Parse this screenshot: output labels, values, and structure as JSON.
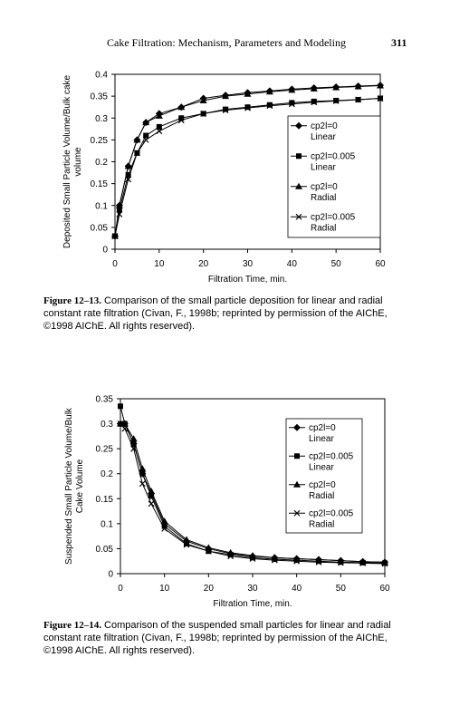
{
  "header": {
    "title": "Cake Filtration: Mechanism, Parameters and Modeling",
    "page": "311"
  },
  "chart_data": [
    {
      "type": "line",
      "x_label": "Filtration Time, min.",
      "y_label": "Deposited Small Particle Volume/Bulk cake\nvolume",
      "caption_label": "Figure 12–13.",
      "caption": "Comparison of the small particle deposition for linear and radial constant rate filtration (Civan, F., 1998b; reprinted by permission of the AIChE, ©1998 AIChE. All rights reserved).",
      "x": [
        0,
        1,
        3,
        5,
        7,
        10,
        15,
        20,
        25,
        30,
        35,
        40,
        45,
        50,
        55,
        60
      ],
      "xlim": [
        0,
        60
      ],
      "xticks": [
        0,
        10,
        20,
        30,
        40,
        50,
        60
      ],
      "ylim": [
        0,
        0.4
      ],
      "yticks": [
        0,
        0.05,
        0.1,
        0.15,
        0.2,
        0.25,
        0.3,
        0.35,
        0.4
      ],
      "series": [
        {
          "name": "cp2l=0\nLinear",
          "color": "#000000",
          "marker": "diamond",
          "values": [
            0.03,
            0.1,
            0.19,
            0.25,
            0.29,
            0.31,
            0.325,
            0.345,
            0.352,
            0.358,
            0.362,
            0.366,
            0.369,
            0.371,
            0.373,
            0.375
          ]
        },
        {
          "name": "cp2l=0.005\nLinear",
          "color": "#000000",
          "marker": "square",
          "values": [
            0.03,
            0.09,
            0.17,
            0.22,
            0.26,
            0.28,
            0.3,
            0.31,
            0.32,
            0.325,
            0.33,
            0.335,
            0.338,
            0.34,
            0.342,
            0.345
          ]
        },
        {
          "name": "cp2l=0\nRadial",
          "color": "#000000",
          "marker": "triangle",
          "values": [
            0.03,
            0.1,
            0.19,
            0.25,
            0.29,
            0.305,
            0.325,
            0.34,
            0.35,
            0.355,
            0.36,
            0.364,
            0.367,
            0.37,
            0.372,
            0.374
          ]
        },
        {
          "name": "cp2l=0.005\nRadial",
          "color": "#000000",
          "marker": "x",
          "values": [
            0.03,
            0.08,
            0.16,
            0.22,
            0.25,
            0.27,
            0.295,
            0.31,
            0.318,
            0.323,
            0.328,
            0.332,
            0.336,
            0.339,
            0.342,
            0.345
          ]
        }
      ]
    },
    {
      "type": "line",
      "x_label": "Filtration Time, min.",
      "y_label": "Suspended Small Particle Volume/Bulk\nCake Volume",
      "caption_label": "Figure 12–14.",
      "caption": "Comparison of the suspended small particles for linear and radial constant rate filtration (Civan, F., 1998b; reprinted by permission of the AIChE, ©1998 AIChE. All rights reserved).",
      "x": [
        0,
        1,
        3,
        5,
        7,
        10,
        15,
        20,
        25,
        30,
        35,
        40,
        45,
        50,
        55,
        60
      ],
      "xlim": [
        0,
        60
      ],
      "xticks": [
        0,
        10,
        20,
        30,
        40,
        50,
        60
      ],
      "ylim": [
        0,
        0.35
      ],
      "yticks": [
        0,
        0.05,
        0.1,
        0.15,
        0.2,
        0.25,
        0.3,
        0.35
      ],
      "series": [
        {
          "name": "cp2l=0\nLinear",
          "color": "#000000",
          "marker": "diamond",
          "values": [
            0.3,
            0.3,
            0.26,
            0.2,
            0.16,
            0.1,
            0.065,
            0.05,
            0.04,
            0.035,
            0.032,
            0.03,
            0.028,
            0.026,
            0.024,
            0.023
          ]
        },
        {
          "name": "cp2l=0.005\nLinear",
          "color": "#000000",
          "marker": "square",
          "values": [
            0.335,
            0.3,
            0.26,
            0.2,
            0.155,
            0.095,
            0.06,
            0.045,
            0.038,
            0.032,
            0.029,
            0.027,
            0.025,
            0.023,
            0.022,
            0.021
          ]
        },
        {
          "name": "cp2l=0\nRadial",
          "color": "#000000",
          "marker": "triangle",
          "values": [
            0.3,
            0.3,
            0.27,
            0.21,
            0.165,
            0.105,
            0.068,
            0.052,
            0.042,
            0.036,
            0.032,
            0.03,
            0.028,
            0.026,
            0.024,
            0.023
          ]
        },
        {
          "name": "cp2l=0.005\nRadial",
          "color": "#000000",
          "marker": "x",
          "values": [
            0.3,
            0.29,
            0.25,
            0.18,
            0.14,
            0.09,
            0.058,
            0.045,
            0.035,
            0.03,
            0.027,
            0.025,
            0.023,
            0.022,
            0.021,
            0.02
          ]
        }
      ]
    }
  ]
}
